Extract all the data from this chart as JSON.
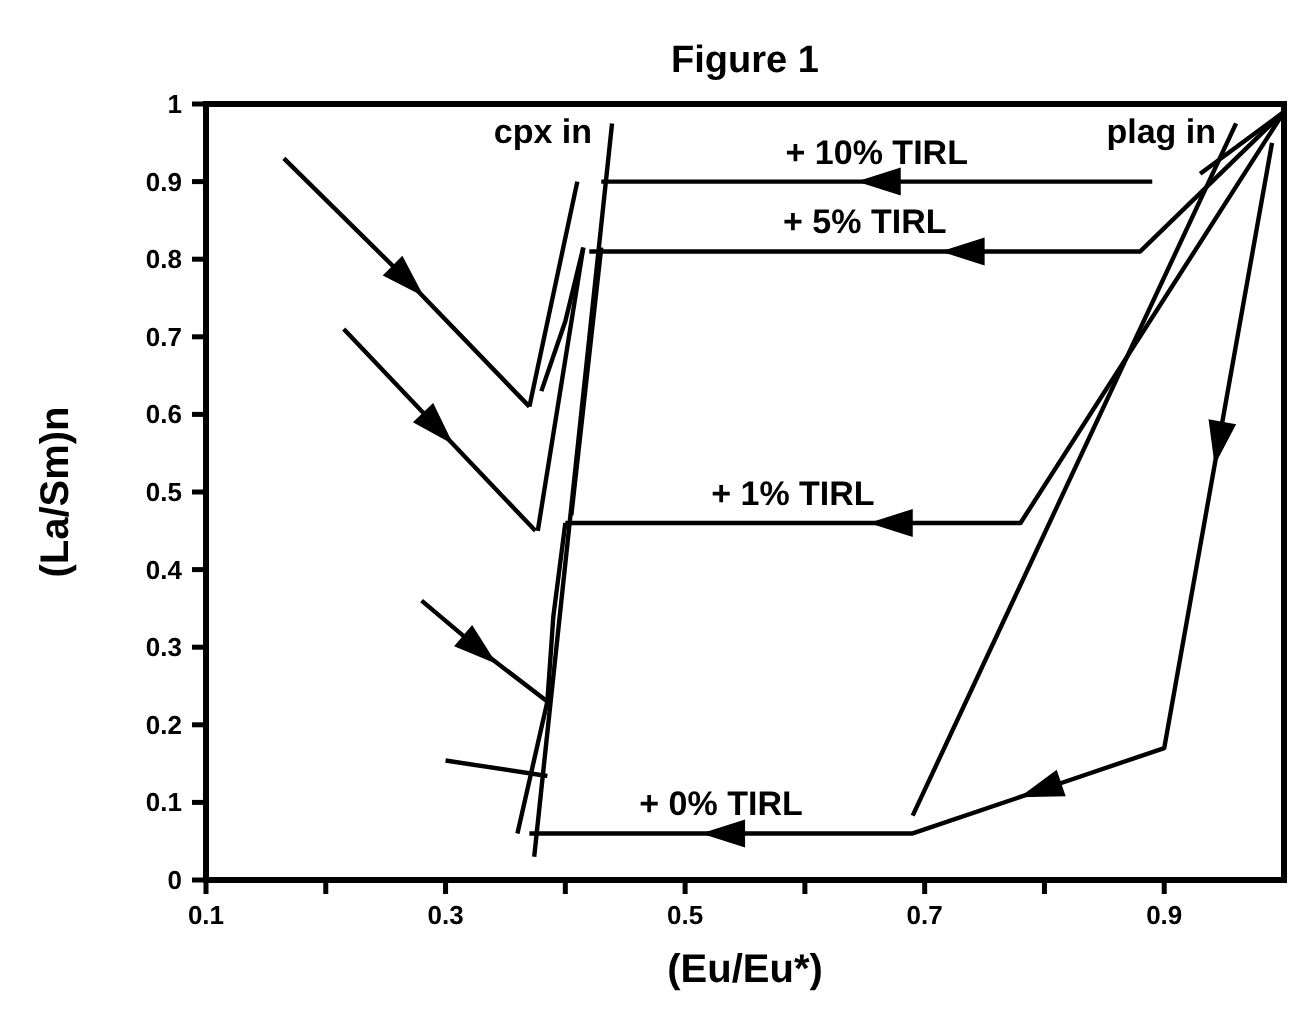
{
  "chart_data": {
    "type": "line",
    "title": "Figure 1",
    "xlabel": "(Eu/Eu*)",
    "ylabel": "(La/Sm)n",
    "xlim": [
      0.1,
      1.0
    ],
    "ylim": [
      0,
      1
    ],
    "xticks": [
      0.1,
      {
        "value": 0.2,
        "label": null
      },
      0.3,
      {
        "value": 0.4,
        "label": null
      },
      0.5,
      {
        "value": 0.6,
        "label": null
      },
      0.7,
      {
        "value": 0.8,
        "label": null
      },
      0.9
    ],
    "yticks": [
      0,
      0.1,
      0.2,
      0.3,
      0.4,
      0.5,
      0.6,
      0.7,
      0.8,
      0.9,
      1
    ],
    "grid": false,
    "series": [
      {
        "name": "+ 10% TIRL",
        "color": "#000000",
        "x": [
          0.89,
          0.66,
          0.43
        ],
        "values": [
          0.9,
          0.9,
          0.9
        ]
      },
      {
        "name": "+ 5% TIRL",
        "color": "#000000",
        "x": [
          1.0,
          0.88,
          0.73,
          0.42
        ],
        "values": [
          0.99,
          0.81,
          0.81,
          0.81
        ]
      },
      {
        "name": "+ 1% TIRL",
        "color": "#000000",
        "x": [
          1.0,
          0.78,
          0.67,
          0.4
        ],
        "values": [
          0.99,
          0.46,
          0.46,
          0.46
        ]
      },
      {
        "name": "+ 0% TIRL",
        "color": "#000000",
        "x": [
          0.99,
          0.945,
          0.9,
          0.795,
          0.69,
          0.53,
          0.37
        ],
        "values": [
          0.95,
          0.56,
          0.17,
          0.115,
          0.06,
          0.06,
          0.06
        ]
      },
      {
        "color": "#000000",
        "x": [
          0.165,
          0.27,
          0.37
        ],
        "values": [
          0.93,
          0.77,
          0.61
        ]
      },
      {
        "color": "#000000",
        "x": [
          0.215,
          0.295,
          0.375
        ],
        "values": [
          0.71,
          0.58,
          0.45
        ]
      },
      {
        "color": "#000000",
        "x": [
          0.28,
          0.33,
          0.385
        ],
        "values": [
          0.36,
          0.295,
          0.23
        ]
      },
      {
        "color": "#000000",
        "x": [
          0.3,
          0.385
        ],
        "values": [
          0.154,
          0.134
        ]
      },
      {
        "color": "#000000",
        "x": [
          0.4,
          0.39,
          0.385,
          0.36
        ],
        "values": [
          0.46,
          0.34,
          0.23,
          0.06
        ]
      },
      {
        "color": "#000000",
        "x": [
          0.41,
          0.37
        ],
        "values": [
          0.9,
          0.61
        ]
      },
      {
        "color": "#000000",
        "x": [
          0.415,
          0.4,
          0.38
        ],
        "values": [
          0.815,
          0.72,
          0.63
        ]
      },
      {
        "color": "#000000",
        "x": [
          0.43,
          0.405
        ],
        "values": [
          0.815,
          0.47
        ]
      },
      {
        "color": "#000000",
        "x": [
          0.415,
          0.377
        ],
        "values": [
          0.815,
          0.45
        ]
      },
      {
        "color": "#000000",
        "x": [
          1.0,
          0.93
        ],
        "values": [
          0.99,
          0.91
        ]
      },
      {
        "name": "cpx in",
        "color": "#000000",
        "x": [
          0.374,
          0.439
        ],
        "values": [
          0.03,
          0.975
        ]
      },
      {
        "name": "plag in",
        "color": "#000000",
        "x": [
          0.96,
          0.69
        ],
        "values": [
          0.975,
          0.083
        ]
      }
    ]
  }
}
